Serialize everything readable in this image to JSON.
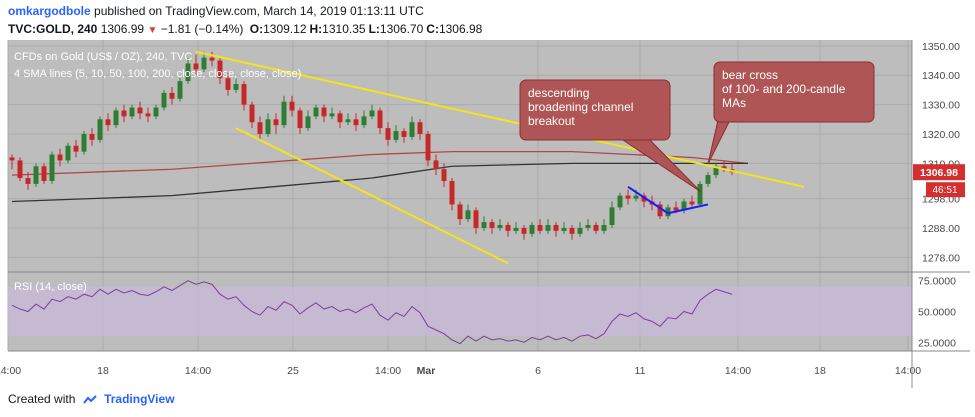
{
  "header": {
    "author": "omkargodbole",
    "published_text": "published on TradingView.com, March 14, 2019 01:13:11 UTC",
    "symbol_interval": "TVC:GOLD, 240",
    "last": "1306.99",
    "change": "−1.81 (−0.14%)",
    "ohlc": [
      {
        "k": "O:",
        "v": "1309.12"
      },
      {
        "k": "H:",
        "v": "1310.35"
      },
      {
        "k": "L:",
        "v": "1306.70"
      },
      {
        "k": "C:",
        "v": "1306.98"
      }
    ]
  },
  "chart_data": {
    "type": "candlestick",
    "title": "CFDs on Gold (US$ / OZ), 240, TVC",
    "indicator_label": "4 SMA lines (5, 10, 50, 100, 200, close, close, close, close)",
    "price_axis": {
      "ylim": [
        1273,
        1352
      ],
      "ticks": [
        1350.0,
        1340.0,
        1330.0,
        1320.0,
        1310.0,
        1298.0,
        1288.0,
        1278.0
      ],
      "tick_labels": [
        "1350.00",
        "1340.00",
        "1330.00",
        "1320.00",
        "1310.00",
        "1298.00",
        "1288.00",
        "1278.00"
      ]
    },
    "x_ticks": [
      "14:00",
      "18",
      "14:00",
      "25",
      "14:00",
      "Mar",
      "6",
      "11",
      "14:00",
      "18",
      "14:00"
    ],
    "candles": [
      [
        1312,
        1311,
        1313,
        1308
      ],
      [
        1311,
        1305,
        1312,
        1304
      ],
      [
        1305,
        1303,
        1307,
        1301
      ],
      [
        1303,
        1309,
        1310,
        1302
      ],
      [
        1309,
        1304,
        1310,
        1303
      ],
      [
        1304,
        1313,
        1314,
        1303
      ],
      [
        1313,
        1311,
        1315,
        1309
      ],
      [
        1311,
        1316,
        1317,
        1310
      ],
      [
        1316,
        1314,
        1318,
        1312
      ],
      [
        1314,
        1320,
        1321,
        1313
      ],
      [
        1320,
        1318,
        1322,
        1316
      ],
      [
        1318,
        1325,
        1326,
        1317
      ],
      [
        1325,
        1323,
        1327,
        1321
      ],
      [
        1323,
        1328,
        1329,
        1322
      ],
      [
        1328,
        1326,
        1330,
        1324
      ],
      [
        1326,
        1329,
        1330,
        1325
      ],
      [
        1329,
        1327,
        1331,
        1325
      ],
      [
        1327,
        1326,
        1329,
        1324
      ],
      [
        1326,
        1329,
        1330,
        1325
      ],
      [
        1329,
        1334,
        1335,
        1328
      ],
      [
        1334,
        1332,
        1336,
        1330
      ],
      [
        1332,
        1338,
        1339,
        1331
      ],
      [
        1338,
        1344,
        1346,
        1337
      ],
      [
        1344,
        1342,
        1347,
        1340
      ],
      [
        1342,
        1346,
        1348,
        1341
      ],
      [
        1346,
        1345,
        1348,
        1343
      ],
      [
        1345,
        1339,
        1346,
        1337
      ],
      [
        1339,
        1335,
        1341,
        1333
      ],
      [
        1335,
        1337,
        1339,
        1334
      ],
      [
        1337,
        1330,
        1338,
        1328
      ],
      [
        1330,
        1324,
        1331,
        1322
      ],
      [
        1324,
        1320,
        1326,
        1318
      ],
      [
        1320,
        1325,
        1327,
        1319
      ],
      [
        1325,
        1323,
        1327,
        1320
      ],
      [
        1323,
        1331,
        1333,
        1322
      ],
      [
        1331,
        1328,
        1333,
        1326
      ],
      [
        1328,
        1322,
        1329,
        1320
      ],
      [
        1322,
        1326,
        1328,
        1321
      ],
      [
        1326,
        1329,
        1330,
        1325
      ],
      [
        1329,
        1326,
        1330,
        1324
      ],
      [
        1326,
        1327,
        1329,
        1325
      ],
      [
        1327,
        1324,
        1328,
        1322
      ],
      [
        1324,
        1325,
        1327,
        1323
      ],
      [
        1325,
        1323,
        1327,
        1321
      ],
      [
        1323,
        1326,
        1328,
        1322
      ],
      [
        1326,
        1328,
        1330,
        1325
      ],
      [
        1328,
        1322,
        1329,
        1320
      ],
      [
        1322,
        1318,
        1324,
        1316
      ],
      [
        1318,
        1321,
        1323,
        1317
      ],
      [
        1321,
        1319,
        1322,
        1317
      ],
      [
        1319,
        1324,
        1326,
        1318
      ],
      [
        1324,
        1320,
        1325,
        1318
      ],
      [
        1320,
        1311,
        1321,
        1309
      ],
      [
        1311,
        1308,
        1313,
        1306
      ],
      [
        1308,
        1304,
        1310,
        1302
      ],
      [
        1304,
        1296,
        1305,
        1294
      ],
      [
        1296,
        1291,
        1297,
        1289
      ],
      [
        1291,
        1294,
        1296,
        1290
      ],
      [
        1294,
        1288,
        1295,
        1286
      ],
      [
        1288,
        1290,
        1292,
        1287
      ],
      [
        1290,
        1288,
        1291,
        1286
      ],
      [
        1288,
        1289,
        1291,
        1287
      ],
      [
        1289,
        1287,
        1290,
        1285
      ],
      [
        1287,
        1288,
        1290,
        1286
      ],
      [
        1288,
        1286,
        1289,
        1284
      ],
      [
        1286,
        1289,
        1290,
        1285
      ],
      [
        1289,
        1287,
        1291,
        1286
      ],
      [
        1287,
        1289,
        1291,
        1286
      ],
      [
        1289,
        1287,
        1290,
        1285
      ],
      [
        1287,
        1288,
        1290,
        1286
      ],
      [
        1288,
        1286,
        1289,
        1284
      ],
      [
        1286,
        1288,
        1290,
        1285
      ],
      [
        1288,
        1289,
        1291,
        1287
      ],
      [
        1289,
        1287,
        1290,
        1286
      ],
      [
        1287,
        1289,
        1291,
        1286
      ],
      [
        1289,
        1295,
        1297,
        1288
      ],
      [
        1295,
        1299,
        1300,
        1294
      ],
      [
        1299,
        1298,
        1301,
        1296
      ],
      [
        1298,
        1299,
        1301,
        1297
      ],
      [
        1299,
        1297,
        1300,
        1295
      ],
      [
        1297,
        1296,
        1299,
        1294
      ],
      [
        1296,
        1292,
        1297,
        1291
      ],
      [
        1292,
        1295,
        1296,
        1291
      ],
      [
        1295,
        1294,
        1297,
        1293
      ],
      [
        1294,
        1297,
        1298,
        1293
      ],
      [
        1297,
        1296,
        1299,
        1295
      ],
      [
        1296,
        1303,
        1304,
        1295
      ],
      [
        1303,
        1306,
        1307,
        1302
      ],
      [
        1306,
        1309,
        1310,
        1305
      ],
      [
        1309,
        1308,
        1311,
        1307
      ],
      [
        1308,
        1307,
        1310,
        1306
      ]
    ],
    "sma": [
      {
        "period": "100",
        "color": "#b04848",
        "points": [
          [
            0,
            1306
          ],
          [
            20,
            1308
          ],
          [
            45,
            1313
          ],
          [
            55,
            1314
          ],
          [
            70,
            1314
          ],
          [
            85,
            1312
          ],
          [
            92,
            1310
          ]
        ]
      },
      {
        "period": "200",
        "color": "#333333",
        "points": [
          [
            0,
            1297
          ],
          [
            20,
            1299
          ],
          [
            45,
            1305
          ],
          [
            55,
            1309
          ],
          [
            70,
            1310
          ],
          [
            85,
            1310
          ],
          [
            92,
            1310
          ]
        ]
      }
    ],
    "trendlines": [
      {
        "from": [
          23,
          1348
        ],
        "to": [
          99,
          1302
        ],
        "color": "#f2e51b"
      },
      {
        "from": [
          28,
          1322
        ],
        "to": [
          62,
          1276
        ],
        "color": "#f2e51b"
      },
      {
        "from": [
          77,
          1302
        ],
        "to": [
          82,
          1293
        ],
        "color": "#1a1aff"
      },
      {
        "from": [
          82,
          1293
        ],
        "to": [
          87,
          1296
        ],
        "color": "#1a1aff"
      }
    ],
    "price_labels": [
      {
        "text": "1306.98",
        "sub": "46:51",
        "value": 1306.98
      }
    ],
    "annotations": [
      {
        "text": "descending broadening channel breakout",
        "lines": [
          "descending",
          "broadening channel",
          "breakout"
        ],
        "anchor": [
          87,
          1305
        ]
      },
      {
        "text": "bear cross of 100- and 200-candle MAs",
        "lines": [
          "bear cross",
          "of 100- and 200-candle",
          "MAs"
        ],
        "anchor": [
          88,
          1310
        ]
      }
    ],
    "rsi": {
      "label": "RSI (14, close)",
      "ylim": [
        18,
        82
      ],
      "ticks": [
        75.0,
        50.0,
        25.0
      ],
      "tick_labels": [
        "75.0000",
        "50.0000",
        "25.0000"
      ],
      "band": [
        30,
        70
      ],
      "values": [
        55,
        52,
        50,
        56,
        52,
        60,
        58,
        62,
        60,
        64,
        62,
        68,
        64,
        68,
        65,
        67,
        64,
        63,
        66,
        70,
        67,
        71,
        75,
        72,
        74,
        72,
        64,
        60,
        62,
        55,
        50,
        47,
        54,
        51,
        58,
        55,
        48,
        53,
        57,
        52,
        54,
        50,
        52,
        49,
        53,
        56,
        47,
        43,
        49,
        46,
        54,
        49,
        38,
        35,
        32,
        27,
        24,
        30,
        26,
        30,
        27,
        28,
        26,
        27,
        25,
        29,
        27,
        30,
        27,
        29,
        26,
        30,
        31,
        28,
        32,
        42,
        48,
        46,
        49,
        44,
        42,
        38,
        45,
        44,
        50,
        48,
        59,
        64,
        68,
        66,
        64
      ]
    }
  },
  "footer": {
    "created_with": "Created with",
    "brand": "TradingView"
  }
}
